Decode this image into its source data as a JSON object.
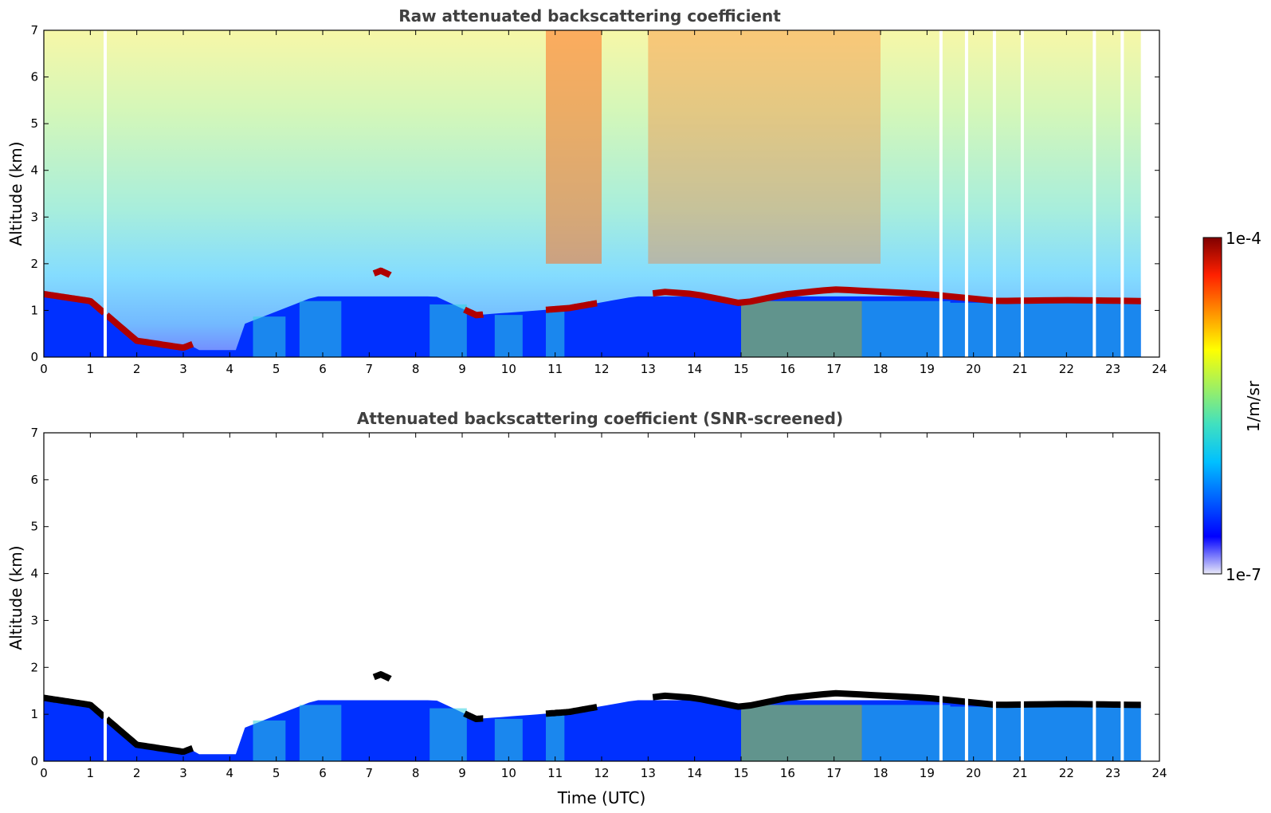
{
  "chart_data": [
    {
      "type": "heatmap",
      "title": "Raw attenuated backscattering coefficient",
      "xlabel": "",
      "ylabel": "Altitude (km)",
      "xlim": [
        0,
        24
      ],
      "ylim": [
        0,
        7
      ],
      "x_ticks": [
        "0",
        "1",
        "2",
        "3",
        "4",
        "5",
        "6",
        "7",
        "8",
        "9",
        "10",
        "11",
        "12",
        "13",
        "14",
        "15",
        "16",
        "17",
        "18",
        "19",
        "20",
        "21",
        "22",
        "23",
        "24"
      ],
      "y_ticks": [
        "0",
        "1",
        "2",
        "3",
        "4",
        "5",
        "6",
        "7"
      ],
      "data_end_hour": 23.6,
      "data_gaps_hours": [
        1.32,
        19.3,
        19.85,
        20.45,
        21.05,
        22.6,
        23.2
      ],
      "cloud_layer": [
        {
          "t": 0.0,
          "alt": 1.35
        },
        {
          "t": 1.0,
          "alt": 1.2
        },
        {
          "t": 2.0,
          "alt": 0.35
        },
        {
          "t": 3.0,
          "alt": 0.2
        },
        {
          "t": 7.25,
          "alt": 1.85
        },
        {
          "t": 9.3,
          "alt": 0.9
        },
        {
          "t": 11.3,
          "alt": 1.05
        },
        {
          "t": 13.3,
          "alt": 1.4
        },
        {
          "t": 14.0,
          "alt": 1.35
        },
        {
          "t": 15.0,
          "alt": 1.15
        },
        {
          "t": 16.0,
          "alt": 1.35
        },
        {
          "t": 17.0,
          "alt": 1.45
        },
        {
          "t": 18.0,
          "alt": 1.4
        },
        {
          "t": 19.0,
          "alt": 1.35
        },
        {
          "t": 20.5,
          "alt": 1.2
        },
        {
          "t": 22.0,
          "alt": 1.22
        },
        {
          "t": 23.6,
          "alt": 1.2
        }
      ]
    },
    {
      "type": "heatmap",
      "title": "Attenuated backscattering coefficient (SNR-screened)",
      "xlabel": "Time (UTC)",
      "ylabel": "Altitude (km)",
      "xlim": [
        0,
        24
      ],
      "ylim": [
        0,
        7
      ],
      "x_ticks": [
        "0",
        "1",
        "2",
        "3",
        "4",
        "5",
        "6",
        "7",
        "8",
        "9",
        "10",
        "11",
        "12",
        "13",
        "14",
        "15",
        "16",
        "17",
        "18",
        "19",
        "20",
        "21",
        "22",
        "23",
        "24"
      ],
      "y_ticks": [
        "0",
        "1",
        "2",
        "3",
        "4",
        "5",
        "6",
        "7"
      ]
    }
  ],
  "colorbar": {
    "label": "1/m/sr",
    "max_label": "1e-4",
    "min_label": "1e-7",
    "scale": "log",
    "colors": [
      "#e8e8f8",
      "#0000ff",
      "#0060ff",
      "#00c0ff",
      "#40e0c0",
      "#a0f060",
      "#ffff00",
      "#ff9000",
      "#ff2000",
      "#800000"
    ]
  }
}
